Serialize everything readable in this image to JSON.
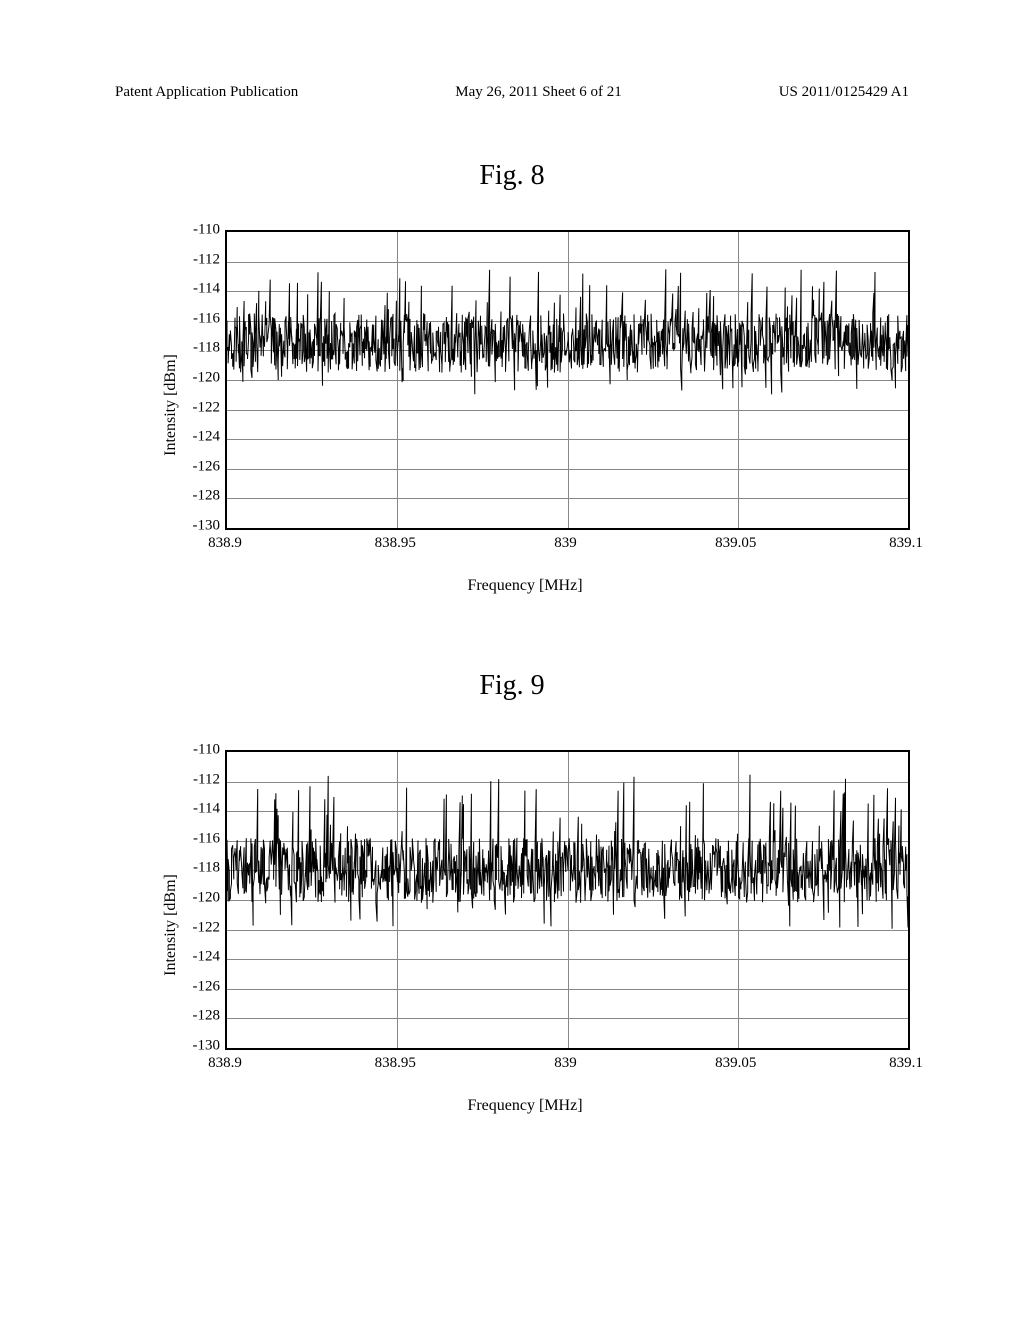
{
  "header": {
    "left": "Patent Application Publication",
    "center": "May 26, 2011  Sheet 6 of 21",
    "right": "US 2011/0125429 A1"
  },
  "fig8": {
    "title": "Fig. 8",
    "type": "line",
    "xlabel": "Frequency [MHz]",
    "ylabel": "Intensity [dBm]",
    "xlim": [
      838.9,
      839.1
    ],
    "ylim": [
      -130,
      -110
    ],
    "xticks": [
      838.9,
      838.95,
      839,
      839.05,
      839.1
    ],
    "yticks": [
      -130,
      -128,
      -126,
      -124,
      -122,
      -120,
      -118,
      -116,
      -114,
      -112,
      -110
    ],
    "line_color": "#000000",
    "grid_color": "#888888",
    "background_color": "#ffffff",
    "line_width": 1,
    "label_fontsize": 16,
    "tick_fontsize": 15,
    "noise_center": -117.5,
    "noise_amplitude": 2.0,
    "spike_min": -120,
    "spike_max": -114,
    "n_points": 600,
    "seed": 8
  },
  "fig9": {
    "title": "Fig. 9",
    "type": "line",
    "xlabel": "Frequency [MHz]",
    "ylabel": "Intensity [dBm]",
    "xlim": [
      838.9,
      839.1
    ],
    "ylim": [
      -130,
      -110
    ],
    "xticks": [
      838.9,
      838.95,
      839,
      839.05,
      839.1
    ],
    "yticks": [
      -130,
      -128,
      -126,
      -124,
      -122,
      -120,
      -118,
      -116,
      -114,
      -112,
      -110
    ],
    "line_color": "#000000",
    "grid_color": "#888888",
    "background_color": "#ffffff",
    "line_width": 1,
    "label_fontsize": 16,
    "tick_fontsize": 15,
    "noise_center": -118.0,
    "noise_amplitude": 2.2,
    "spike_min": -121,
    "spike_max": -113,
    "n_points": 600,
    "seed": 9
  }
}
